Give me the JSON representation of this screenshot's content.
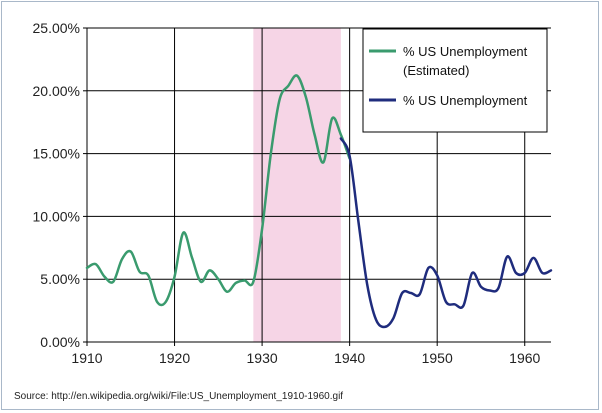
{
  "chart_data": {
    "type": "line",
    "xlim": [
      1910,
      1963
    ],
    "ylim": [
      0,
      25
    ],
    "x_ticks": [
      1910,
      1920,
      1930,
      1940,
      1950,
      1960
    ],
    "y_ticks": [
      0,
      5,
      10,
      15,
      20,
      25
    ],
    "x_tick_labels": [
      "1910",
      "1920",
      "1930",
      "1940",
      "1950",
      "1960"
    ],
    "y_tick_labels": [
      "0.00%",
      "5.00%",
      "10.00%",
      "15.00%",
      "20.00%",
      "25.00%"
    ],
    "grid": true,
    "shaded_region": {
      "x_start": 1929,
      "x_end": 1939,
      "color": "#f6d5e6"
    },
    "legend_position": "top-right",
    "series": [
      {
        "name_line1": "% US Unemployment",
        "name_line2": "(Estimated)",
        "color": "#3a9b6e",
        "x": [
          1910,
          1911,
          1912,
          1913,
          1914,
          1915,
          1916,
          1917,
          1918,
          1919,
          1920,
          1921,
          1922,
          1923,
          1924,
          1925,
          1926,
          1927,
          1928,
          1929,
          1930,
          1931,
          1932,
          1933,
          1934,
          1935,
          1936,
          1937,
          1938,
          1939,
          1940
        ],
        "y": [
          5.9,
          6.2,
          5.2,
          4.8,
          6.6,
          7.2,
          5.6,
          5.3,
          3.2,
          3.2,
          5.2,
          8.7,
          6.7,
          4.8,
          5.7,
          5.0,
          4.0,
          4.7,
          4.9,
          4.8,
          9.0,
          15.0,
          19.3,
          20.4,
          21.2,
          19.5,
          16.5,
          14.3,
          17.8,
          16.5,
          14.6
        ]
      },
      {
        "name": "% US Unemployment",
        "color": "#1f2c7d",
        "x": [
          1939,
          1940,
          1941,
          1942,
          1943,
          1944,
          1945,
          1946,
          1947,
          1948,
          1949,
          1950,
          1951,
          1952,
          1953,
          1954,
          1955,
          1956,
          1957,
          1958,
          1959,
          1960,
          1961,
          1962,
          1963
        ],
        "y": [
          16.2,
          14.8,
          9.6,
          4.6,
          1.8,
          1.2,
          1.9,
          3.9,
          3.9,
          3.8,
          5.9,
          5.3,
          3.2,
          3.0,
          2.9,
          5.5,
          4.4,
          4.1,
          4.3,
          6.8,
          5.5,
          5.5,
          6.7,
          5.5,
          5.7
        ]
      }
    ]
  },
  "source_text": "Source: http://en.wikipedia.org/wiki/File:US_Unemployment_1910-1960.gif"
}
